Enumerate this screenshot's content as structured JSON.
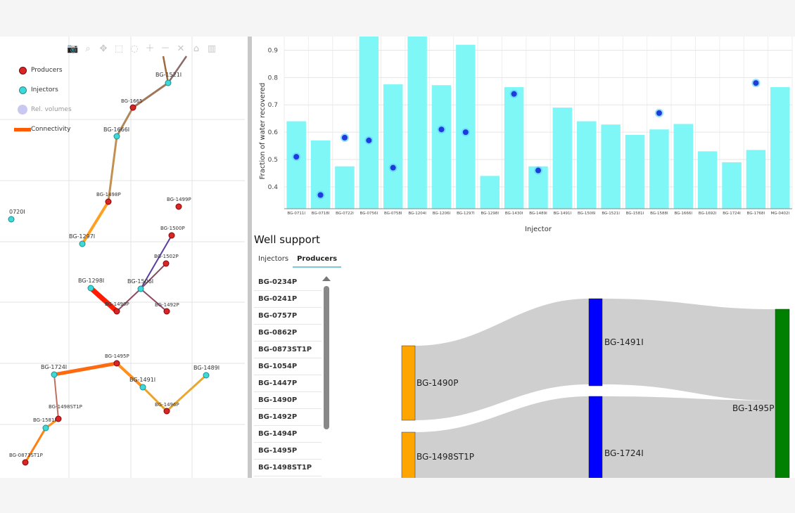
{
  "map": {
    "legend": [
      {
        "label": "Producers",
        "symbol": "producer-dot"
      },
      {
        "label": "Injectors",
        "symbol": "injector-dot"
      },
      {
        "label": "Rel. volumes",
        "symbol": "relvolume-dot"
      },
      {
        "label": "Connectivity",
        "symbol": "connectivity-line"
      }
    ],
    "modebar_icons": [
      "camera-icon",
      "zoom-icon",
      "pan-icon",
      "box-select-icon",
      "lasso-icon",
      "zoom-in-icon",
      "zoom-out-icon",
      "autoscale-icon",
      "home-icon",
      "plotly-logo-icon"
    ],
    "colors": {
      "producer": "#d62728",
      "injector": "#3fd8d8",
      "connectivity": "#ff5a00"
    },
    "wells": [
      {
        "label": "BG-1521I",
        "type": "injector"
      },
      {
        "label": "BG-1665",
        "type": "producer"
      },
      {
        "label": "BG-1666I",
        "type": "injector"
      },
      {
        "label": "BG-1498P",
        "type": "producer"
      },
      {
        "label": "BG-1499P",
        "type": "producer"
      },
      {
        "label": "0720I",
        "type": "injector"
      },
      {
        "label": "BG-1297I",
        "type": "injector"
      },
      {
        "label": "BG-1500P",
        "type": "producer"
      },
      {
        "label": "BG-1502P",
        "type": "producer"
      },
      {
        "label": "BG-1298I",
        "type": "injector"
      },
      {
        "label": "BG-1506I",
        "type": "injector"
      },
      {
        "label": "BG-1490P",
        "type": "producer"
      },
      {
        "label": "BG-1492P",
        "type": "producer"
      },
      {
        "label": "BG-1495P",
        "type": "producer"
      },
      {
        "label": "BG-1724I",
        "type": "injector"
      },
      {
        "label": "BG-1491I",
        "type": "injector"
      },
      {
        "label": "BG-1489I",
        "type": "injector"
      },
      {
        "label": "BG-1496P",
        "type": "producer"
      },
      {
        "label": "BG-1498ST1P",
        "type": "producer"
      },
      {
        "label": "BG-1581I",
        "type": "injector"
      },
      {
        "label": "BG-0873ST1P",
        "type": "producer"
      }
    ]
  },
  "chart_data": {
    "type": "bar",
    "xlabel": "Injector",
    "ylabel": "Fraction of water recovered",
    "ylim": [
      0.32,
      0.95
    ],
    "yticks": [
      0.4,
      0.5,
      0.6,
      0.7,
      0.8,
      0.9
    ],
    "bar_color": "#7ff7f7",
    "dot_color": "#1f3bdc",
    "categories": [
      "BG-0711I",
      "BG-0718I",
      "BG-0722I",
      "BG-0756I",
      "BG-0758I",
      "BG-1204I",
      "BG-1206I",
      "BG-1297I",
      "BG-1298I",
      "BG-1430I",
      "BG-1489I",
      "BG-1491I",
      "BG-1506I",
      "BG-1521I",
      "BG-1581I",
      "BG-1588I",
      "BG-1666I",
      "BG-1692I",
      "BG-1724I",
      "BG-1768I",
      "MG-0402I"
    ],
    "series": [
      {
        "values": [
          0.64,
          0.57,
          0.475,
          0.95,
          0.775,
          0.95,
          0.772,
          0.92,
          0.44,
          0.765,
          0.475,
          0.69,
          0.64,
          0.628,
          0.59,
          0.61,
          0.63,
          0.53,
          0.49,
          0.535,
          0.765
        ]
      },
      {
        "values": [
          0.51,
          0.37,
          0.58,
          0.57,
          0.47,
          null,
          0.61,
          0.6,
          null,
          0.74,
          0.46,
          null,
          null,
          null,
          null,
          0.67,
          null,
          null,
          null,
          0.78,
          null
        ]
      }
    ]
  },
  "support": {
    "title": "Well support",
    "tabs": [
      {
        "label": "Injectors",
        "active": false
      },
      {
        "label": "Producers",
        "active": true
      }
    ],
    "wells": [
      "BG-0234P",
      "BG-0241P",
      "BG-0757P",
      "BG-0862P",
      "BG-0873ST1P",
      "BG-1054P",
      "BG-1447P",
      "BG-1490P",
      "BG-1492P",
      "BG-1494P",
      "BG-1495P",
      "BG-1498ST1P"
    ]
  },
  "sankey": {
    "nodes": [
      {
        "label": "BG-1490P",
        "color": "#ffa500"
      },
      {
        "label": "BG-1498ST1P",
        "color": "#ffa500"
      },
      {
        "label": "BG-1491I",
        "color": "#0000ff"
      },
      {
        "label": "BG-1724I",
        "color": "#0000ff"
      },
      {
        "label": "BG-1495P",
        "color": "#008000"
      }
    ],
    "link_color": "#cccccc"
  }
}
